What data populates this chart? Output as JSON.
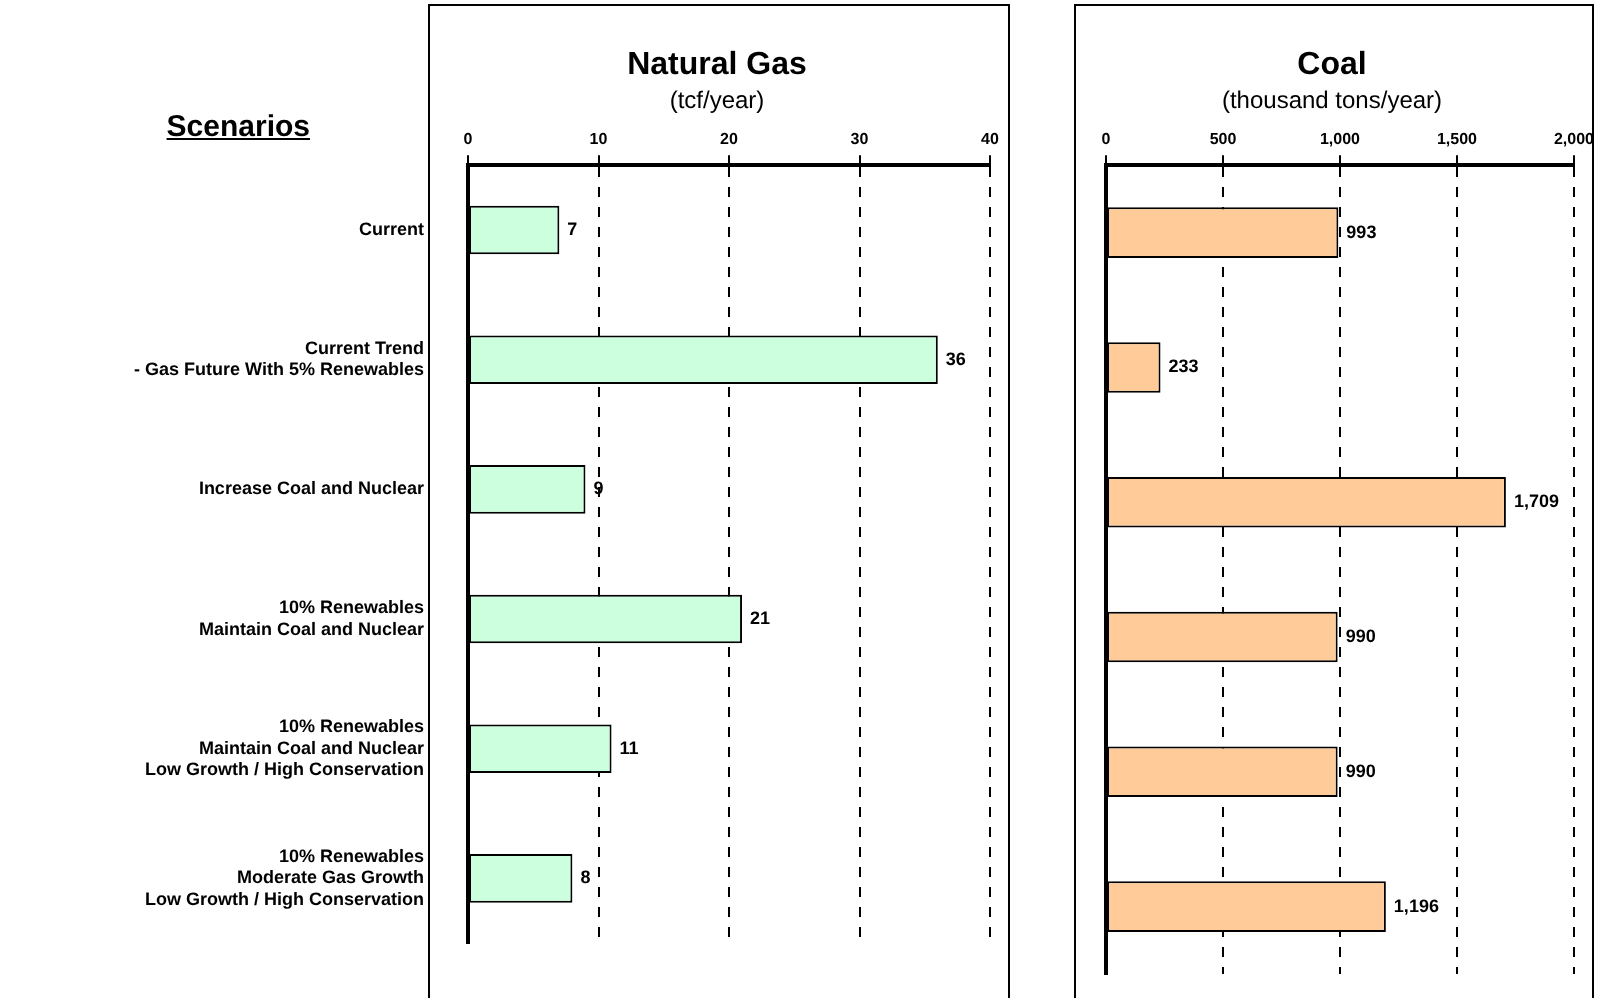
{
  "chart_data": [
    {
      "type": "bar",
      "orientation": "horizontal",
      "title": "Natural Gas",
      "subtitle": "(tcf/year)",
      "ylabel": "Scenarios",
      "categories": [
        "Current",
        "Current Trend\n- Gas Future With 5% Renewables",
        "Increase Coal and Nuclear",
        "10% Renewables\nMaintain Coal and Nuclear",
        "10% Renewables\nMaintain Coal and Nuclear\nLow Growth / High Conservation",
        "10% Renewables\nModerate Gas Growth\nLow Growth / High Conservation"
      ],
      "values": [
        7,
        36,
        9,
        21,
        11,
        8
      ],
      "color": "#ccffdd",
      "xlim": [
        0,
        40
      ],
      "xticks": [
        0,
        10,
        20,
        30,
        40
      ],
      "grid": "x",
      "legend": false,
      "data_labels": true
    },
    {
      "type": "bar",
      "orientation": "horizontal",
      "title": "Coal",
      "subtitle": "(thousand tons/year)",
      "categories": [
        null,
        null,
        null,
        null,
        null,
        null
      ],
      "values": [
        993,
        233,
        1709,
        990,
        990,
        1196
      ],
      "value_labels": [
        "993",
        "233",
        "1,709",
        "990",
        "990",
        "1,196"
      ],
      "color": "#ffcc99",
      "xlim": [
        0,
        2000
      ],
      "xticks": [
        0,
        {
          "value": 500,
          "label": "500"
        },
        {
          "value": 1000,
          "label": "1,000"
        },
        {
          "value": 1500,
          "label": "1,500"
        },
        {
          "value": 2000,
          "label": "2,000"
        }
      ],
      "grid": "x",
      "legend": false,
      "tick_labels": "x"
    }
  ]
}
